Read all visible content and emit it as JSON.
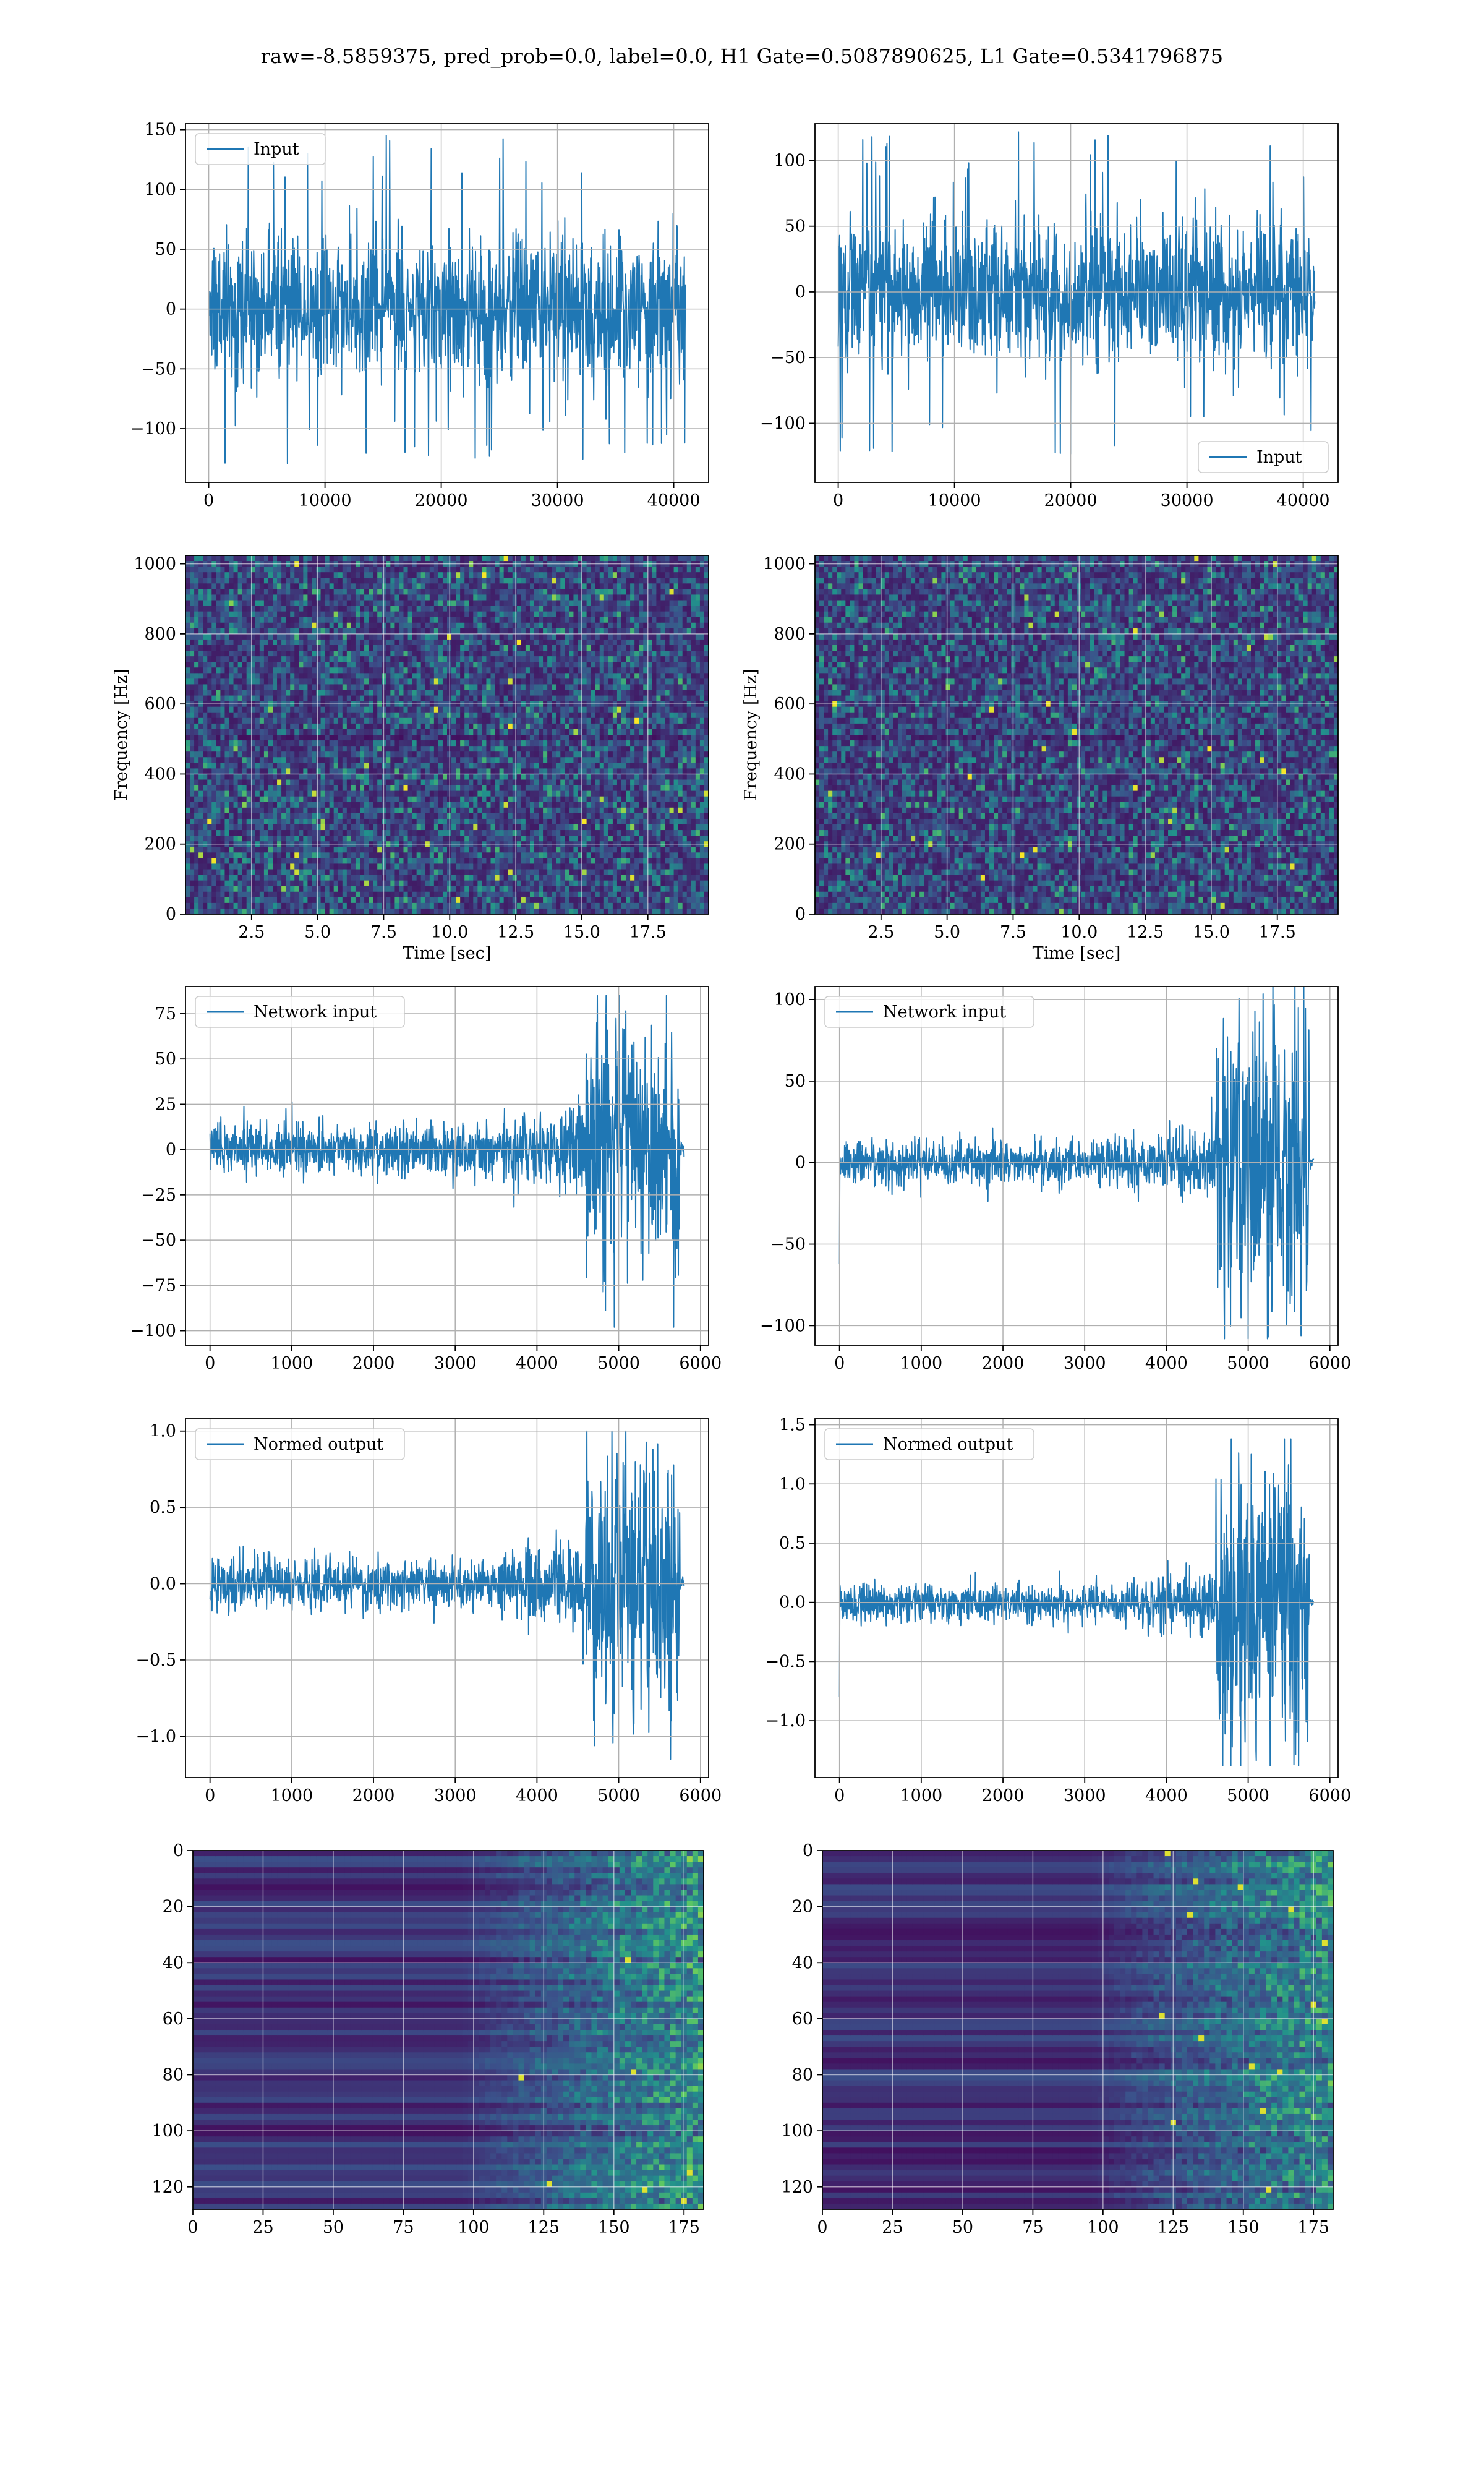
{
  "figure_title": "raw=-8.5859375, pred_prob=0.0, label=0.0, H1 Gate=0.5087890625, L1 Gate=0.5341796875",
  "colors": {
    "line": "#1f77b4",
    "grid": "#b0b0b0",
    "axes": "#000000",
    "viridis_low": "#440154",
    "viridis_mid": "#21918c",
    "viridis_high": "#fde725"
  },
  "chart_data": [
    {
      "id": "h1-input",
      "type": "line",
      "legend": "Input",
      "legend_loc": "upper-left",
      "grid": true,
      "xlim": [
        -2000,
        43000
      ],
      "ylim": [
        -145,
        155
      ],
      "xticks": [
        0,
        10000,
        20000,
        30000,
        40000
      ],
      "xtick_labels": [
        "0",
        "10000",
        "20000",
        "30000",
        "40000"
      ],
      "yticks": [
        -100,
        -50,
        0,
        50,
        100,
        150
      ],
      "ytick_labels": [
        "−100",
        "−50",
        "0",
        "50",
        "100",
        "150"
      ],
      "signal": {
        "x_start": 0,
        "x_end": 41000,
        "band_half": 55,
        "spike_max": 148,
        "spike_min": -130,
        "shape": "stationary"
      }
    },
    {
      "id": "l1-input",
      "type": "line",
      "legend": "Input",
      "legend_loc": "lower-right",
      "grid": true,
      "xlim": [
        -2000,
        43000
      ],
      "ylim": [
        -145,
        128
      ],
      "xticks": [
        0,
        10000,
        20000,
        30000,
        40000
      ],
      "xtick_labels": [
        "0",
        "10000",
        "20000",
        "30000",
        "40000"
      ],
      "yticks": [
        -100,
        -50,
        0,
        50,
        100
      ],
      "ytick_labels": [
        "−100",
        "−50",
        "0",
        "50",
        "100"
      ],
      "signal": {
        "x_start": 0,
        "x_end": 41000,
        "band_half": 48,
        "spike_max": 122,
        "spike_min": -130,
        "shape": "stationary"
      }
    },
    {
      "id": "h1-spectrogram",
      "type": "heatmap",
      "grid": true,
      "colormap": "viridis",
      "seed": 11,
      "xlim": [
        0,
        19.8
      ],
      "ylim": [
        0,
        1024
      ],
      "xticks": [
        2.5,
        5.0,
        7.5,
        10.0,
        12.5,
        15.0,
        17.5
      ],
      "xtick_labels": [
        "2.5",
        "5.0",
        "7.5",
        "10.0",
        "12.5",
        "15.0",
        "17.5"
      ],
      "yticks": [
        0,
        200,
        400,
        600,
        800,
        1000
      ],
      "ytick_labels": [
        "0",
        "200",
        "400",
        "600",
        "800",
        "1000"
      ],
      "xlabel": "Time [sec]",
      "ylabel": "Frequency [Hz]"
    },
    {
      "id": "l1-spectrogram",
      "type": "heatmap",
      "grid": true,
      "colormap": "viridis",
      "seed": 23,
      "xlim": [
        0,
        19.8
      ],
      "ylim": [
        0,
        1024
      ],
      "xticks": [
        2.5,
        5.0,
        7.5,
        10.0,
        12.5,
        15.0,
        17.5
      ],
      "xtick_labels": [
        "2.5",
        "5.0",
        "7.5",
        "10.0",
        "12.5",
        "15.0",
        "17.5"
      ],
      "yticks": [
        0,
        200,
        400,
        600,
        800,
        1000
      ],
      "ytick_labels": [
        "0",
        "200",
        "400",
        "600",
        "800",
        "1000"
      ],
      "xlabel": "Time [sec]",
      "ylabel": "Frequency [Hz]"
    },
    {
      "id": "h1-network-input",
      "type": "line",
      "legend": "Network input",
      "legend_loc": "upper-left",
      "grid": true,
      "xlim": [
        -300,
        6100
      ],
      "ylim": [
        -108,
        90
      ],
      "xticks": [
        0,
        1000,
        2000,
        3000,
        4000,
        5000,
        6000
      ],
      "xtick_labels": [
        "0",
        "1000",
        "2000",
        "3000",
        "4000",
        "5000",
        "6000"
      ],
      "yticks": [
        -100,
        -75,
        -50,
        -25,
        0,
        25,
        50,
        75
      ],
      "ytick_labels": [
        "−100",
        "−75",
        "−50",
        "−25",
        "0",
        "25",
        "50",
        "75"
      ],
      "signal": {
        "x_start": 0,
        "x_end": 5800,
        "burst_start": 4600,
        "burst_end": 5750,
        "base_half": 12,
        "burst_peak": 85,
        "burst_min": -98,
        "shape": "burst"
      }
    },
    {
      "id": "l1-network-input",
      "type": "line",
      "legend": "Network input",
      "legend_loc": "upper-left",
      "grid": true,
      "xlim": [
        -300,
        6100
      ],
      "ylim": [
        -112,
        108
      ],
      "xticks": [
        0,
        1000,
        2000,
        3000,
        4000,
        5000,
        6000
      ],
      "xtick_labels": [
        "0",
        "1000",
        "2000",
        "3000",
        "4000",
        "5000",
        "6000"
      ],
      "yticks": [
        -100,
        -50,
        0,
        50,
        100
      ],
      "ytick_labels": [
        "−100",
        "−50",
        "0",
        "50",
        "100"
      ],
      "signal": {
        "x_start": 0,
        "x_end": 5800,
        "burst_start": 4600,
        "burst_end": 5750,
        "base_half": 11,
        "burst_peak": 110,
        "burst_min": -108,
        "first_point": -62,
        "shape": "burst"
      }
    },
    {
      "id": "h1-normed-output",
      "type": "line",
      "legend": "Normed output",
      "legend_loc": "upper-left",
      "grid": true,
      "xlim": [
        -300,
        6100
      ],
      "ylim": [
        -1.27,
        1.08
      ],
      "xticks": [
        0,
        1000,
        2000,
        3000,
        4000,
        5000,
        6000
      ],
      "xtick_labels": [
        "0",
        "1000",
        "2000",
        "3000",
        "4000",
        "5000",
        "6000"
      ],
      "yticks": [
        -1.0,
        -0.5,
        0.0,
        0.5,
        1.0
      ],
      "ytick_labels": [
        "−1.0",
        "−0.5",
        "0.0",
        "0.5",
        "1.0"
      ],
      "signal": {
        "x_start": 0,
        "x_end": 5800,
        "burst_start": 4600,
        "burst_end": 5750,
        "base_half": 0.14,
        "burst_peak": 1.0,
        "burst_min": -1.15,
        "shape": "burst"
      }
    },
    {
      "id": "l1-normed-output",
      "type": "line",
      "legend": "Normed output",
      "legend_loc": "upper-left",
      "grid": true,
      "xlim": [
        -300,
        6100
      ],
      "ylim": [
        -1.48,
        1.55
      ],
      "xticks": [
        0,
        1000,
        2000,
        3000,
        4000,
        5000,
        6000
      ],
      "xtick_labels": [
        "0",
        "1000",
        "2000",
        "3000",
        "4000",
        "5000",
        "6000"
      ],
      "yticks": [
        -1.0,
        -0.5,
        0.0,
        0.5,
        1.0,
        1.5
      ],
      "ytick_labels": [
        "−1.0",
        "−0.5",
        "0.0",
        "0.5",
        "1.0",
        "1.5"
      ],
      "signal": {
        "x_start": 0,
        "x_end": 5800,
        "burst_start": 4600,
        "burst_end": 5750,
        "base_half": 0.13,
        "burst_peak": 1.38,
        "burst_min": -1.38,
        "first_point": -0.8,
        "shape": "burst"
      }
    },
    {
      "id": "h1-feature-map",
      "type": "heatmap",
      "grid": true,
      "colormap": "viridis",
      "seed": 41,
      "xlim": [
        0,
        182
      ],
      "ylim": [
        128,
        0
      ],
      "rows": 128,
      "cols": 182,
      "y_inverted": true,
      "xticks": [
        0,
        25,
        50,
        75,
        100,
        125,
        150,
        175
      ],
      "xtick_labels": [
        "0",
        "25",
        "50",
        "75",
        "100",
        "125",
        "150",
        "175"
      ],
      "yticks": [
        0,
        20,
        40,
        60,
        80,
        100,
        120
      ],
      "ytick_labels": [
        "0",
        "20",
        "40",
        "60",
        "80",
        "100",
        "120"
      ]
    },
    {
      "id": "l1-feature-map",
      "type": "heatmap",
      "grid": true,
      "colormap": "viridis",
      "seed": 57,
      "xlim": [
        0,
        182
      ],
      "ylim": [
        128,
        0
      ],
      "rows": 128,
      "cols": 182,
      "y_inverted": true,
      "xticks": [
        0,
        25,
        50,
        75,
        100,
        125,
        150,
        175
      ],
      "xtick_labels": [
        "0",
        "25",
        "50",
        "75",
        "100",
        "125",
        "150",
        "175"
      ],
      "yticks": [
        0,
        20,
        40,
        60,
        80,
        100,
        120
      ],
      "ytick_labels": [
        "0",
        "20",
        "40",
        "60",
        "80",
        "100",
        "120"
      ]
    }
  ]
}
